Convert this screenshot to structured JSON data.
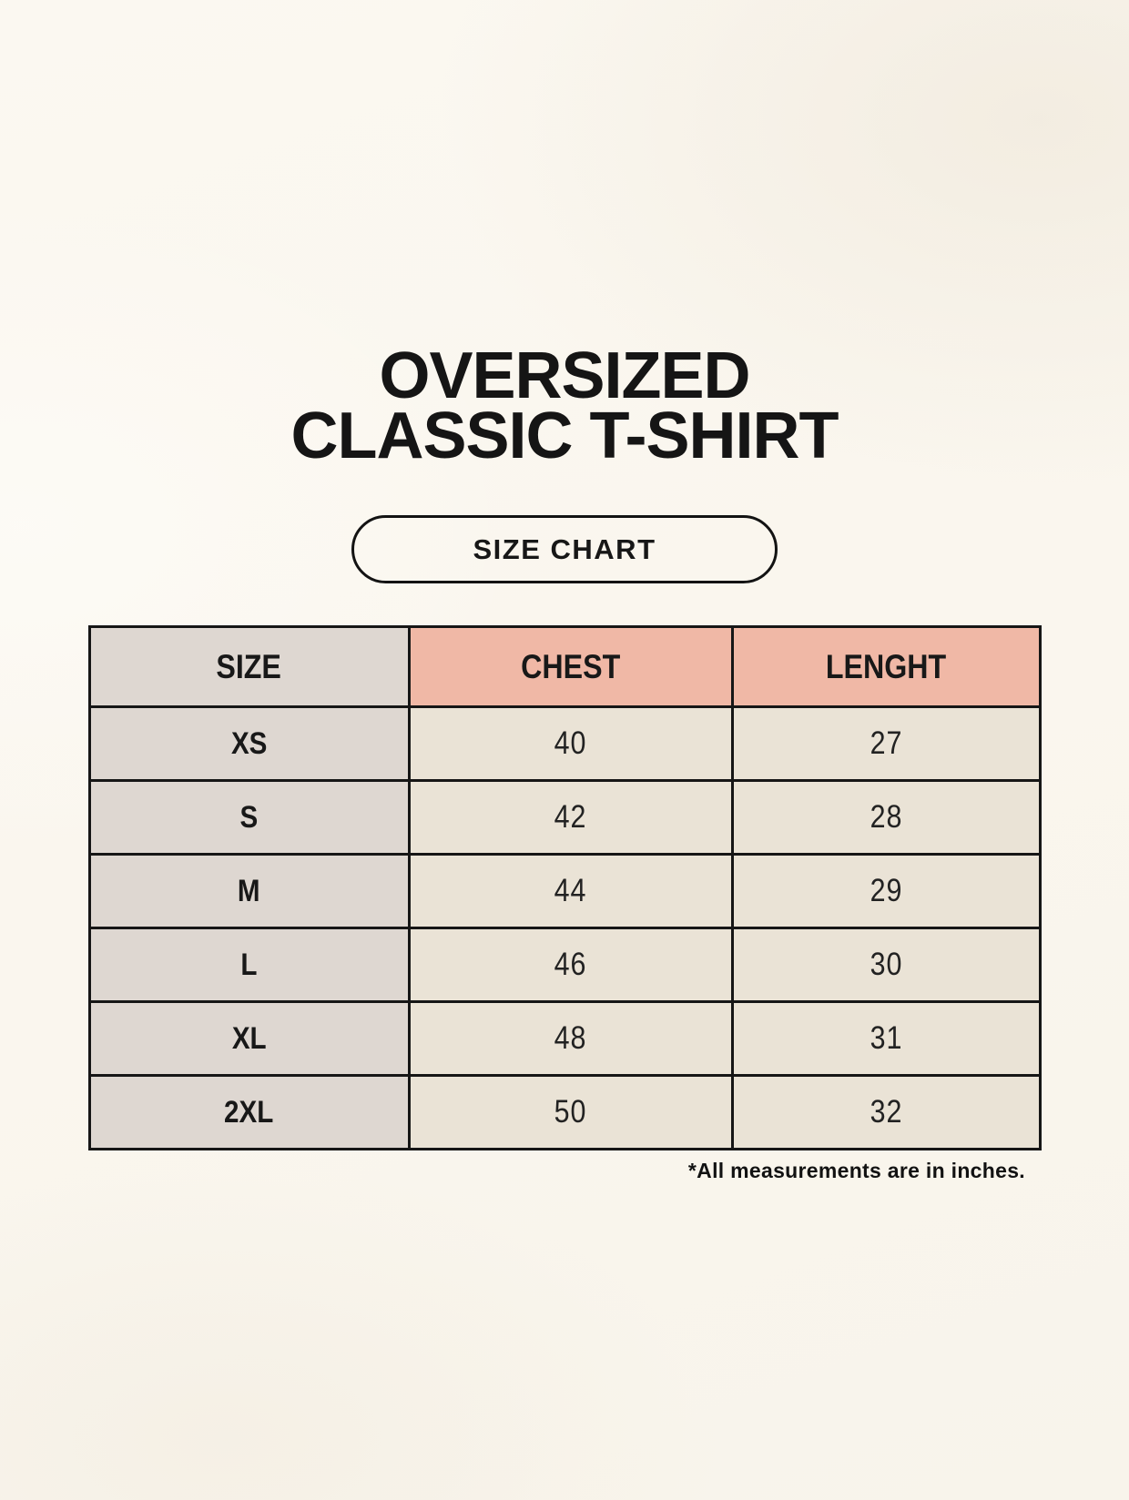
{
  "title": {
    "line1": "OVERSIZED",
    "line2": "CLASSIC T-SHIRT"
  },
  "size_chart_button": {
    "label": "SIZE CHART"
  },
  "size_table": {
    "headers": {
      "size": "SIZE",
      "chest": "CHEST",
      "length": "LENGHT"
    },
    "rows": [
      {
        "size": "XS",
        "chest": "40",
        "length": "27"
      },
      {
        "size": "S",
        "chest": "42",
        "length": "28"
      },
      {
        "size": "M",
        "chest": "44",
        "length": "29"
      },
      {
        "size": "L",
        "chest": "46",
        "length": "30"
      },
      {
        "size": "XL",
        "chest": "48",
        "length": "31"
      },
      {
        "size": "2XL",
        "chest": "50",
        "length": "32"
      }
    ],
    "units": "inches"
  },
  "footnote": "*All measurements are in inches.",
  "colors": {
    "page_background": "#faf6ee",
    "header_size_bg": "#ded7d1",
    "header_measure_bg": "#f0b8a6",
    "size_column_bg": "#ded7d1",
    "data_cell_bg": "#eae3d6",
    "table_border": "#161616",
    "text": "#1b1b1b"
  }
}
